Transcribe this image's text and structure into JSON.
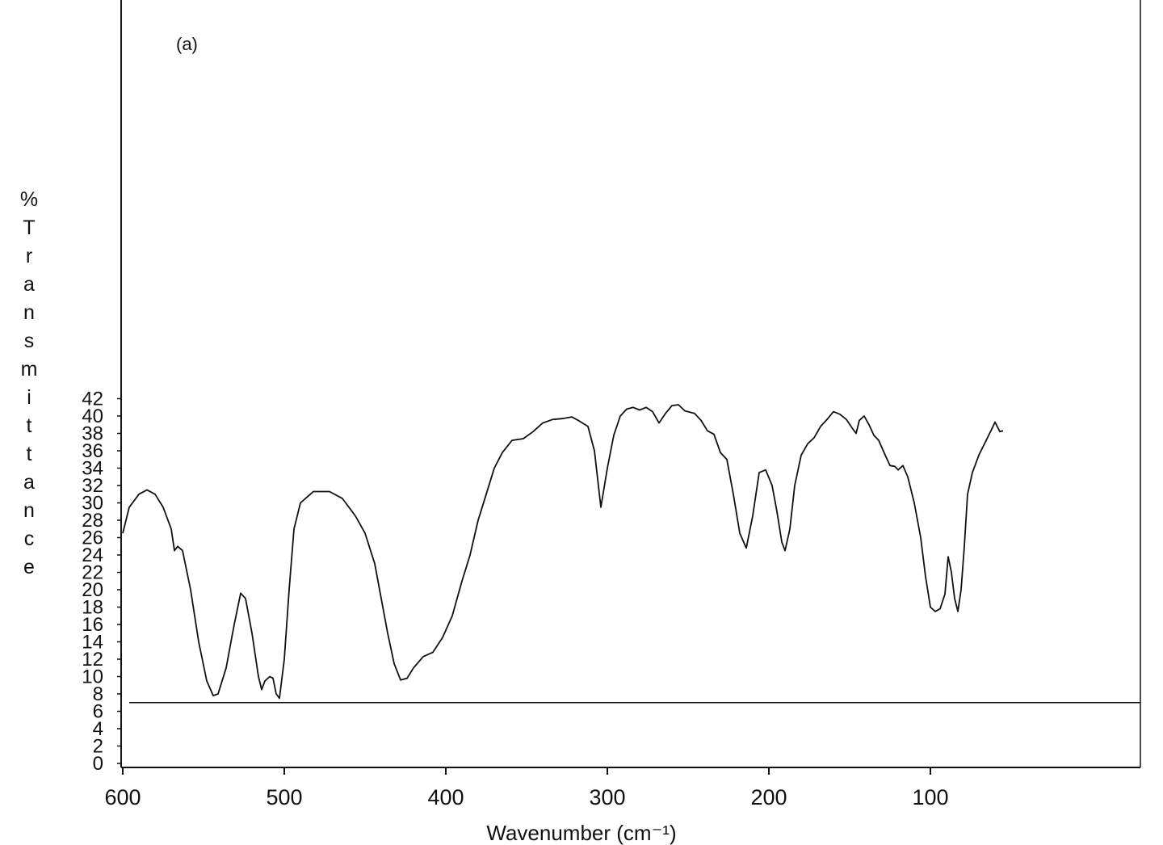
{
  "chart_data": {
    "type": "line",
    "panel_label": "(a)",
    "title": "",
    "xlabel": "Wavenumber (cm⁻¹)",
    "ylabel": "%Transmittance",
    "xlim": [
      600,
      50
    ],
    "ylim": [
      0,
      43
    ],
    "x_ticks": [
      600,
      500,
      400,
      300,
      200,
      100
    ],
    "y_ticks": [
      0,
      2,
      4,
      6,
      8,
      10,
      12,
      14,
      16,
      18,
      20,
      22,
      24,
      26,
      28,
      30,
      32,
      34,
      36,
      38,
      40,
      42
    ],
    "x_tick_labels": [
      "600",
      "500",
      "400",
      "300",
      "200",
      "100"
    ],
    "y_tick_labels": [
      "0",
      "2",
      "4",
      "6",
      "8",
      "10",
      "12",
      "14",
      "16",
      "18",
      "20",
      "22",
      "24",
      "26",
      "28",
      "30",
      "32",
      "34",
      "36",
      "38",
      "40",
      "42"
    ],
    "grid": false,
    "reference_line_y": 7.0,
    "series": [
      {
        "color": "#111111",
        "points": [
          [
            600,
            26.5
          ],
          [
            596,
            29.5
          ],
          [
            590,
            31.0
          ],
          [
            585,
            31.5
          ],
          [
            580,
            31.0
          ],
          [
            575,
            29.5
          ],
          [
            570,
            27.0
          ],
          [
            568,
            24.5
          ],
          [
            566,
            25.0
          ],
          [
            563,
            24.5
          ],
          [
            558,
            20.0
          ],
          [
            553,
            14.0
          ],
          [
            548,
            9.5
          ],
          [
            544,
            7.8
          ],
          [
            541,
            8.0
          ],
          [
            536,
            11.0
          ],
          [
            531,
            16.0
          ],
          [
            527,
            19.6
          ],
          [
            524,
            19.0
          ],
          [
            520,
            15.0
          ],
          [
            516,
            10.0
          ],
          [
            514,
            8.5
          ],
          [
            512,
            9.5
          ],
          [
            509,
            10.0
          ],
          [
            507,
            9.8
          ],
          [
            505,
            8.0
          ],
          [
            503,
            7.5
          ],
          [
            500,
            12.0
          ],
          [
            497,
            20.0
          ],
          [
            494,
            27.0
          ],
          [
            490,
            30.0
          ],
          [
            482,
            31.3
          ],
          [
            472,
            31.3
          ],
          [
            464,
            30.5
          ],
          [
            456,
            28.5
          ],
          [
            450,
            26.5
          ],
          [
            444,
            23.0
          ],
          [
            440,
            19.0
          ],
          [
            436,
            15.0
          ],
          [
            432,
            11.5
          ],
          [
            428,
            9.6
          ],
          [
            424,
            9.8
          ],
          [
            420,
            11.0
          ],
          [
            414,
            12.3
          ],
          [
            408,
            12.8
          ],
          [
            402,
            14.5
          ],
          [
            396,
            17.0
          ],
          [
            390,
            21.0
          ],
          [
            385,
            24.0
          ],
          [
            380,
            28.0
          ],
          [
            375,
            31.0
          ],
          [
            370,
            34.0
          ],
          [
            365,
            35.8
          ],
          [
            359,
            37.2
          ],
          [
            352,
            37.4
          ],
          [
            346,
            38.2
          ],
          [
            340,
            39.2
          ],
          [
            334,
            39.6
          ],
          [
            328,
            39.7
          ],
          [
            322,
            39.9
          ],
          [
            318,
            39.5
          ],
          [
            312,
            38.8
          ],
          [
            308,
            36.0
          ],
          [
            304,
            29.5
          ],
          [
            300,
            34.0
          ],
          [
            296,
            37.8
          ],
          [
            292,
            40.0
          ],
          [
            288,
            40.8
          ],
          [
            284,
            41.0
          ],
          [
            280,
            40.7
          ],
          [
            276,
            41.0
          ],
          [
            272,
            40.5
          ],
          [
            268,
            39.2
          ],
          [
            264,
            40.3
          ],
          [
            260,
            41.2
          ],
          [
            256,
            41.3
          ],
          [
            252,
            40.6
          ],
          [
            246,
            40.3
          ],
          [
            242,
            39.5
          ],
          [
            238,
            38.3
          ],
          [
            234,
            37.9
          ],
          [
            230,
            35.8
          ],
          [
            226,
            35.0
          ],
          [
            222,
            31.0
          ],
          [
            218,
            26.5
          ],
          [
            214,
            24.8
          ],
          [
            210,
            28.5
          ],
          [
            206,
            33.5
          ],
          [
            202,
            33.8
          ],
          [
            198,
            32.0
          ],
          [
            195,
            29.0
          ],
          [
            192,
            25.5
          ],
          [
            190,
            24.5
          ],
          [
            187,
            27.0
          ],
          [
            184,
            32.0
          ],
          [
            180,
            35.5
          ],
          [
            176,
            36.8
          ],
          [
            172,
            37.5
          ],
          [
            168,
            38.8
          ],
          [
            164,
            39.6
          ],
          [
            160,
            40.5
          ],
          [
            156,
            40.2
          ],
          [
            152,
            39.6
          ],
          [
            148,
            38.5
          ],
          [
            146,
            38.0
          ],
          [
            144,
            39.5
          ],
          [
            141,
            40.0
          ],
          [
            138,
            39.0
          ],
          [
            135,
            37.8
          ],
          [
            132,
            37.2
          ],
          [
            128,
            35.5
          ],
          [
            125,
            34.3
          ],
          [
            122,
            34.2
          ],
          [
            120,
            33.8
          ],
          [
            117,
            34.3
          ],
          [
            114,
            33.0
          ],
          [
            110,
            30.0
          ],
          [
            106,
            26.0
          ],
          [
            103,
            21.5
          ],
          [
            100,
            18.0
          ],
          [
            97,
            17.5
          ],
          [
            94,
            17.8
          ],
          [
            91,
            19.5
          ],
          [
            89,
            23.8
          ],
          [
            87,
            22.0
          ],
          [
            85,
            19.0
          ],
          [
            83,
            17.5
          ],
          [
            81,
            20.0
          ],
          [
            79,
            25.0
          ],
          [
            77,
            31.0
          ],
          [
            74,
            33.5
          ],
          [
            70,
            35.5
          ],
          [
            66,
            37.0
          ],
          [
            62,
            38.5
          ],
          [
            60,
            39.3
          ],
          [
            57,
            38.2
          ],
          [
            55,
            38.3
          ]
        ]
      }
    ]
  }
}
